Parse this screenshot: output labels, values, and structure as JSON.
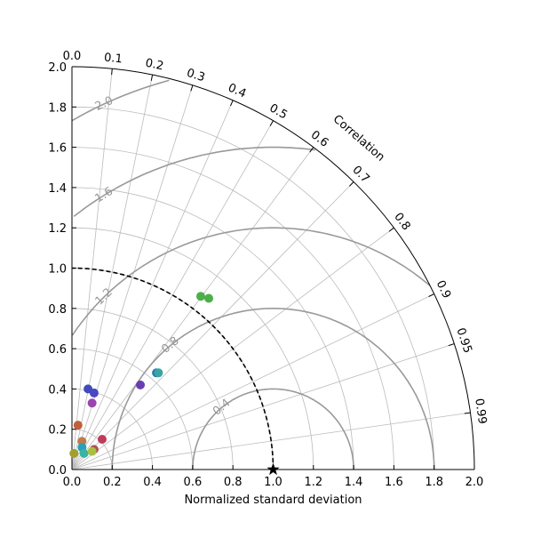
{
  "chart_data": {
    "type": "scatter",
    "subtype": "taylor-diagram",
    "xlabel": "Normalized standard deviation",
    "arc_label": "Correlation",
    "std_ticks": [
      "0.0",
      "0.2",
      "0.4",
      "0.6",
      "0.8",
      "1.0",
      "1.2",
      "1.4",
      "1.6",
      "1.8",
      "2.0"
    ],
    "std_max": 2.0,
    "correlation_ticks": [
      {
        "r": 0.0,
        "label": "0.0"
      },
      {
        "r": 0.1,
        "label": "0.1"
      },
      {
        "r": 0.2,
        "label": "0.2"
      },
      {
        "r": 0.3,
        "label": "0.3"
      },
      {
        "r": 0.4,
        "label": "0.4"
      },
      {
        "r": 0.5,
        "label": "0.5"
      },
      {
        "r": 0.6,
        "label": "0.6"
      },
      {
        "r": 0.7,
        "label": "0.7"
      },
      {
        "r": 0.8,
        "label": "0.8"
      },
      {
        "r": 0.9,
        "label": "0.9"
      },
      {
        "r": 0.95,
        "label": "0.95"
      },
      {
        "r": 0.99,
        "label": "0.99"
      }
    ],
    "rms_contours": [
      0.4,
      0.8,
      1.2,
      1.6,
      2.0
    ],
    "rms_labels": [
      {
        "value": 0.4,
        "text": "0.4"
      },
      {
        "value": 0.8,
        "text": "0.8"
      },
      {
        "value": 1.2,
        "text": "1.2"
      },
      {
        "value": 1.6,
        "text": "1.6"
      },
      {
        "value": 2.0,
        "text": "2.0"
      }
    ],
    "reference": {
      "std": 1.0,
      "corr": 1.0
    },
    "reference_arc_std": 1.0,
    "points": [
      {
        "x": 0.64,
        "y": 0.86,
        "color": "#4daf4a"
      },
      {
        "x": 0.68,
        "y": 0.85,
        "color": "#4daf4a"
      },
      {
        "x": 0.42,
        "y": 0.48,
        "color": "#1f78b4"
      },
      {
        "x": 0.43,
        "y": 0.48,
        "color": "#3aa3a3"
      },
      {
        "x": 0.34,
        "y": 0.42,
        "color": "#6a3db0"
      },
      {
        "x": 0.08,
        "y": 0.4,
        "color": "#3f4bb8"
      },
      {
        "x": 0.11,
        "y": 0.38,
        "color": "#4848c0"
      },
      {
        "x": 0.1,
        "y": 0.33,
        "color": "#9b44b0"
      },
      {
        "x": 0.03,
        "y": 0.22,
        "color": "#c0603a"
      },
      {
        "x": 0.05,
        "y": 0.14,
        "color": "#c07a4a"
      },
      {
        "x": 0.15,
        "y": 0.15,
        "color": "#c03a5c"
      },
      {
        "x": 0.11,
        "y": 0.1,
        "color": "#b05050"
      },
      {
        "x": 0.05,
        "y": 0.11,
        "color": "#2a9fb8"
      },
      {
        "x": 0.06,
        "y": 0.08,
        "color": "#3ab3a0"
      },
      {
        "x": 0.1,
        "y": 0.09,
        "color": "#a8c040"
      },
      {
        "x": 0.01,
        "y": 0.08,
        "color": "#a0a030"
      }
    ]
  }
}
